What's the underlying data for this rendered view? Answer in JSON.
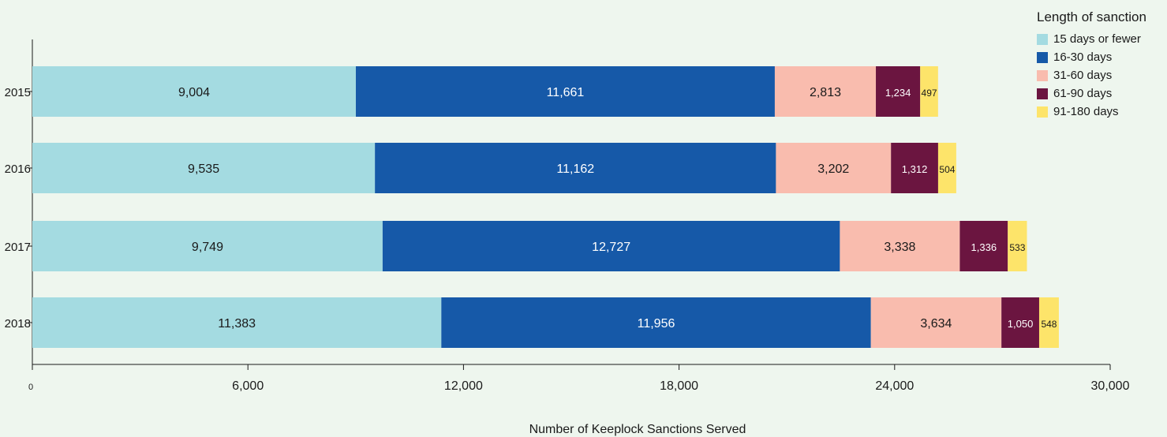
{
  "chart_data": {
    "type": "bar",
    "orientation": "horizontal",
    "stacked": true,
    "categories": [
      "2015",
      "2016",
      "2017",
      "2018"
    ],
    "series": [
      {
        "name": "15 days or fewer",
        "color": "#a4dbe1",
        "values": [
          9004,
          9535,
          9749,
          11383
        ],
        "labels": [
          "9,004",
          "9,535",
          "9,749",
          "11,383"
        ],
        "label_color": "#1a1a1a"
      },
      {
        "name": "16-30 days",
        "color": "#1659a8",
        "values": [
          11661,
          11162,
          12727,
          11956
        ],
        "labels": [
          "11,661",
          "11,162",
          "12,727",
          "11,956"
        ],
        "label_color": "#ffffff"
      },
      {
        "name": "31-60 days",
        "color": "#f9bcae",
        "values": [
          2813,
          3202,
          3338,
          3634
        ],
        "labels": [
          "2,813",
          "3,202",
          "3,338",
          "3,634"
        ],
        "label_color": "#1a1a1a"
      },
      {
        "name": "61-90 days",
        "color": "#6b1540",
        "values": [
          1234,
          1312,
          1336,
          1050
        ],
        "labels": [
          "1,234",
          "1,312",
          "1,336",
          "1,050"
        ],
        "label_color": "#ffffff"
      },
      {
        "name": "91-180 days",
        "color": "#fde46a",
        "values": [
          497,
          504,
          533,
          548
        ],
        "labels": [
          "497",
          "504",
          "533",
          "548"
        ],
        "label_color": "#1a1a1a"
      }
    ],
    "xlabel": "Number of Keeplock Sanctions Served",
    "ylabel": "",
    "xlim": [
      0,
      30000
    ],
    "xticks": [
      0,
      6000,
      12000,
      18000,
      24000,
      30000
    ],
    "xtick_labels": [
      "0",
      "6,000",
      "12,000",
      "18,000",
      "24,000",
      "30,000"
    ],
    "grid": false,
    "legend": {
      "title": "Length of sanction",
      "position": "top-right"
    }
  }
}
